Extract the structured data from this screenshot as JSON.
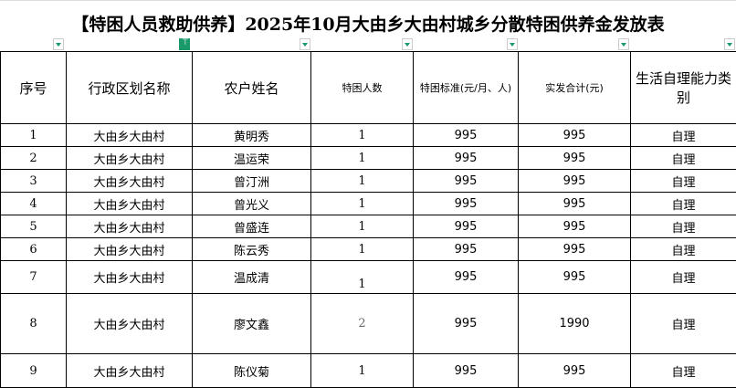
{
  "title": "【特困人员救助供养】2025年10月大由乡大由村城乡分散特困供养金发放表",
  "filter_icons": [
    "filter-dropdown-icon",
    "filter-active-icon",
    "filter-dropdown-icon",
    "filter-dropdown-icon",
    "filter-dropdown-icon",
    "filter-dropdown-icon",
    "filter-dropdown-icon"
  ],
  "accent_color": "#1a9a6a",
  "headers": [
    "序号",
    "行政区划名称",
    "农户姓名",
    "特困人数",
    "特困标准(元/月、人)",
    "实发合计(元)",
    "生活自理能力类别"
  ],
  "rows": [
    [
      "1",
      "大由乡大由村",
      "黄明秀",
      "1",
      "995",
      "995",
      "自理"
    ],
    [
      "2",
      "大由乡大由村",
      "温运荣",
      "1",
      "995",
      "995",
      "自理"
    ],
    [
      "3",
      "大由乡大由村",
      "曾汀洲",
      "1",
      "995",
      "995",
      "自理"
    ],
    [
      "4",
      "大由乡大由村",
      "曾光义",
      "1",
      "995",
      "995",
      "自理"
    ],
    [
      "5",
      "大由乡大由村",
      "曾盛连",
      "1",
      "995",
      "995",
      "自理"
    ],
    [
      "6",
      "大由乡大由村",
      "陈云秀",
      "1",
      "995",
      "995",
      "自理"
    ],
    [
      "7",
      "大由乡大由村",
      "温成清",
      "1",
      "995",
      "995",
      "自理"
    ],
    [
      "8",
      "大由乡大由村",
      "廖文鑫",
      "2",
      "995",
      "1990",
      "自理"
    ],
    [
      "9",
      "大由乡大由村",
      "陈仪菊",
      "1",
      "995",
      "995",
      "自理"
    ]
  ]
}
